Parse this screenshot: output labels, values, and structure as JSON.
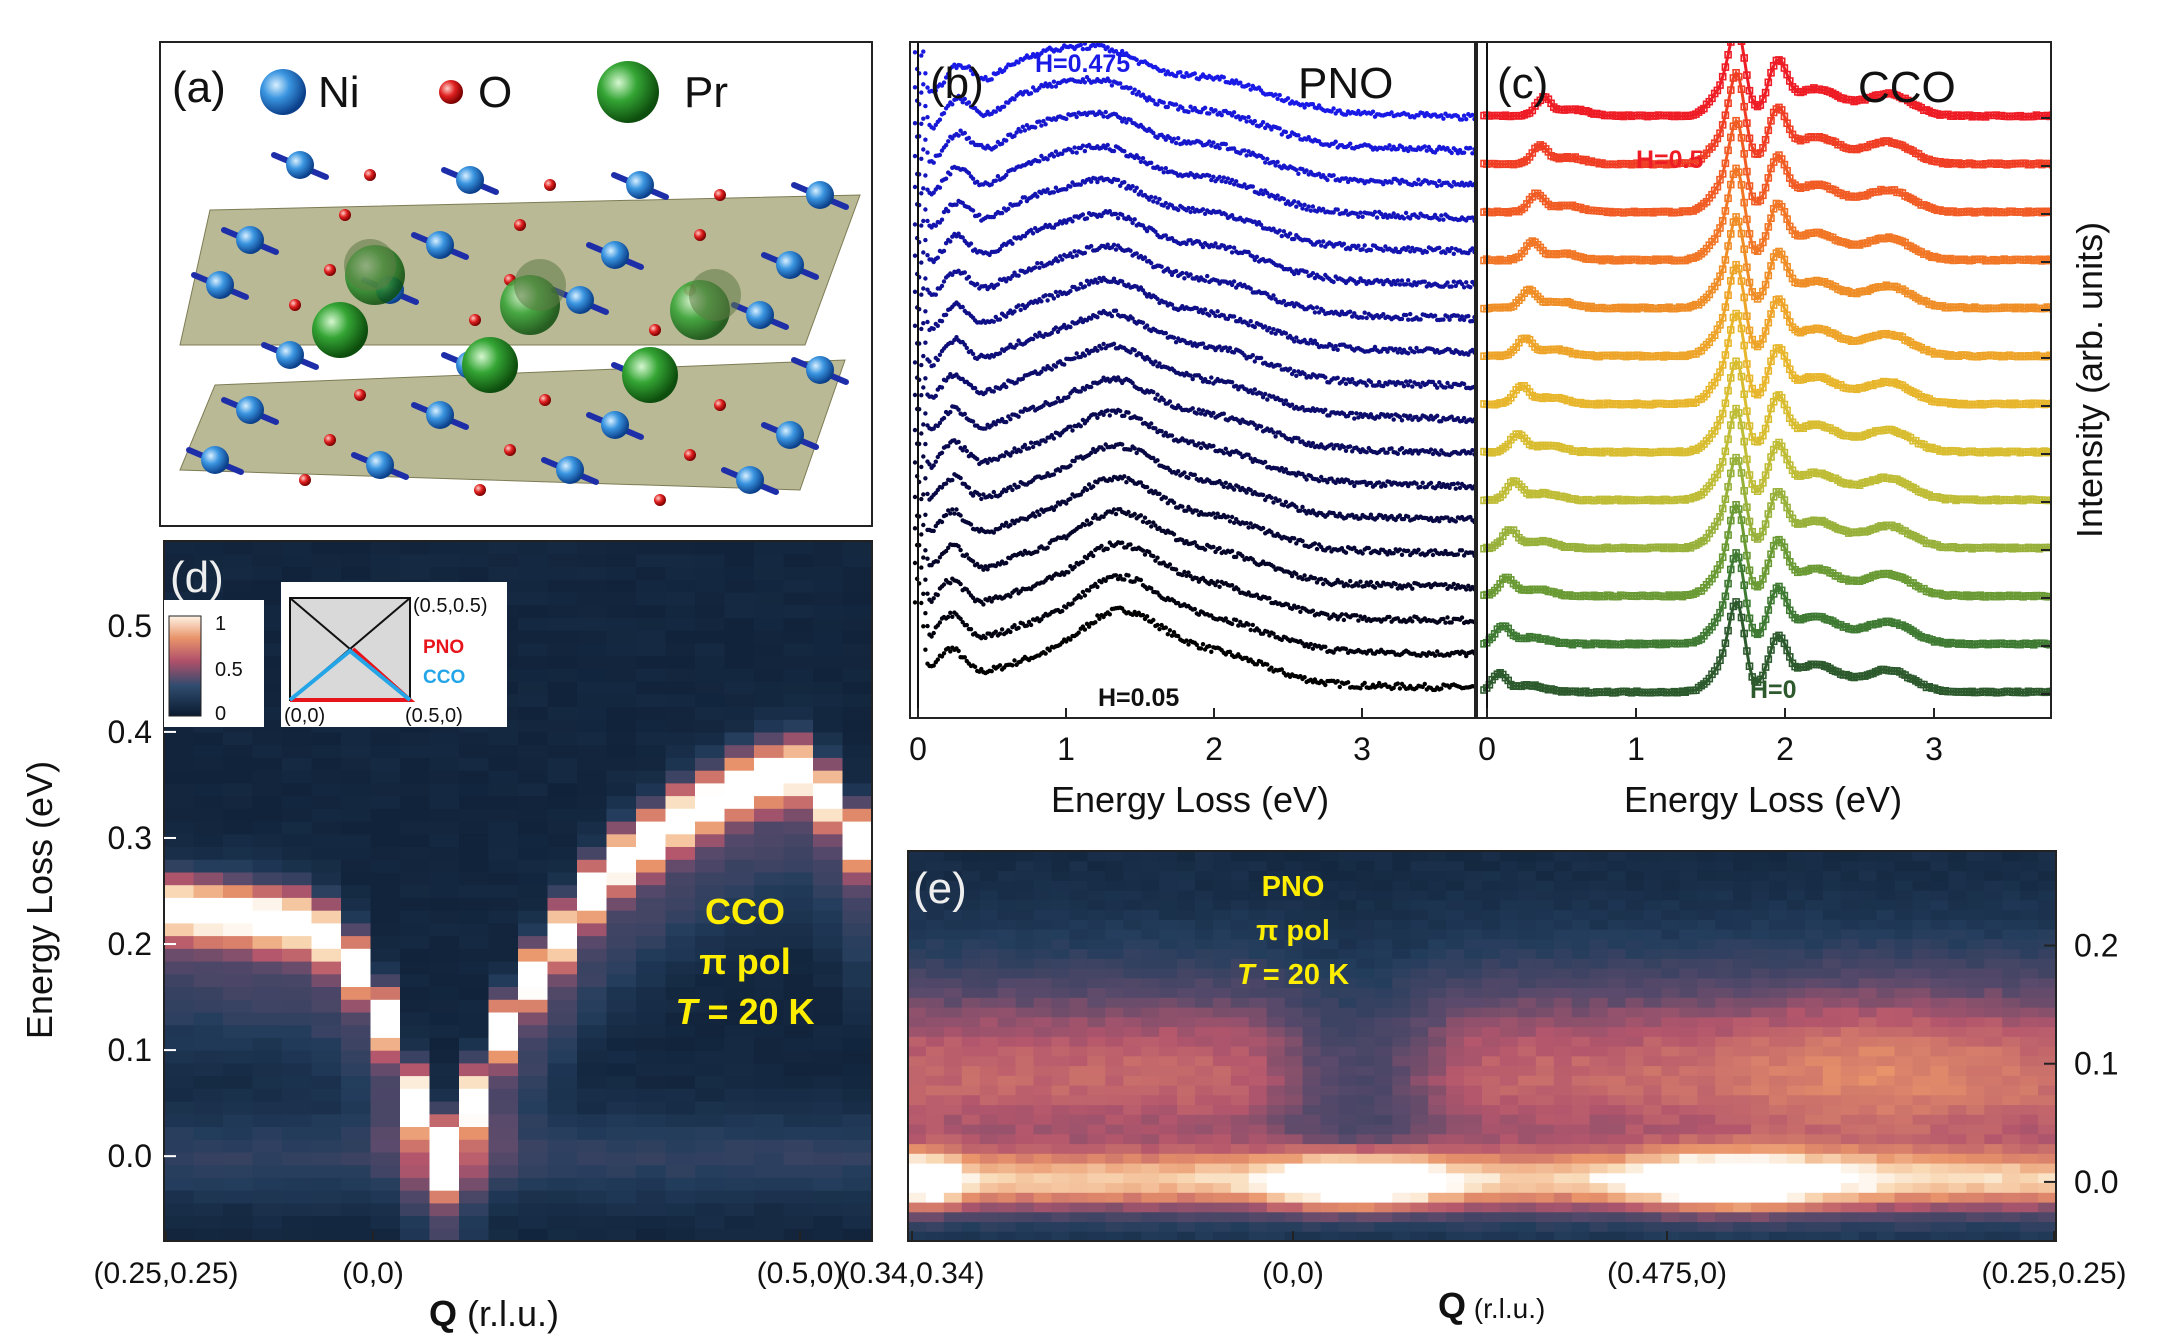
{
  "chart_data": [
    {
      "panel": "(a)",
      "type": "crystal-structure-illustration",
      "legend": [
        {
          "label": "Ni",
          "color": "#2f86d6"
        },
        {
          "label": "O",
          "color": "#d91e1e"
        },
        {
          "label": "Pr",
          "color": "#2f9e2f"
        }
      ]
    },
    {
      "panel": "(b)",
      "type": "scatter",
      "title": "PNO",
      "xlabel": "Energy Loss (eV)",
      "xlim": [
        -0.05,
        3.8
      ],
      "xticks": [
        "0",
        "1",
        "2",
        "3"
      ],
      "series_count": 18,
      "series_label_top": "H=0.475",
      "series_label_bottom": "H=0.05",
      "peak_energy_eV": 1.35,
      "color_top": "#1a1ae6",
      "color_bottom": "#000000"
    },
    {
      "panel": "(c)",
      "type": "scatter",
      "title": "CCO",
      "xlabel": "Energy Loss (eV)",
      "ylabel": "Intensity (arb. units)",
      "xlim": [
        -0.05,
        3.8
      ],
      "xticks": [
        "0",
        "1",
        "2",
        "3"
      ],
      "series_count": 13,
      "series_label_top": "H=0.5",
      "series_label_bottom": "H=0",
      "peak_energies_eV": [
        1.65,
        1.95,
        2.7
      ],
      "color_top": "#ee1c25",
      "color_bottom": "#2d5a2d"
    },
    {
      "panel": "(d)",
      "type": "heatmap",
      "ylabel": "Energy Loss (eV)",
      "xlabel_bold": "Q",
      "xlabel_rest": " (r.l.u.)",
      "ylim": [
        -0.08,
        0.58
      ],
      "yticks": [
        "0.0",
        "0.1",
        "0.2",
        "0.3",
        "0.4",
        "0.5"
      ],
      "xticks": [
        "(0.25,0.25)",
        "(0,0)",
        "(0.5,0)"
      ],
      "annotation": [
        "CCO",
        "π pol",
        "T",
        " = 20 K"
      ],
      "colorbar_ticks": [
        "1",
        "0.5",
        "0"
      ],
      "inset": {
        "corner_labels": [
          "(0.5,0.5)",
          "(0,0)",
          "(0.5,0)"
        ],
        "legend": [
          {
            "label": "PNO",
            "color": "#e8141b"
          },
          {
            "label": "CCO",
            "color": "#23a5e8"
          }
        ]
      },
      "dispersion_eV": [
        0.235,
        0.232,
        0.23,
        0.226,
        0.222,
        0.21,
        0.18,
        0.13,
        0.055,
        0.0,
        0.055,
        0.12,
        0.17,
        0.21,
        0.25,
        0.28,
        0.3,
        0.32,
        0.335,
        0.35,
        0.36,
        0.365,
        0.34,
        0.3
      ]
    },
    {
      "panel": "(e)",
      "type": "heatmap",
      "xlabel_bold": "Q",
      "xlabel_rest": " (r.l.u.)",
      "ylim": [
        -0.05,
        0.28
      ],
      "yticks": [
        "0.0",
        "0.1",
        "0.2"
      ],
      "xticks": [
        "(0.34,0.34)",
        "(0,0)",
        "(0.475,0)",
        "(0.25,0.25)"
      ],
      "annotation": [
        "PNO",
        "π pol",
        "T",
        " = 20 K"
      ]
    }
  ],
  "labels": {
    "a": "(a)",
    "b": "(b)",
    "c": "(c)",
    "d": "(d)",
    "e": "(e)"
  }
}
